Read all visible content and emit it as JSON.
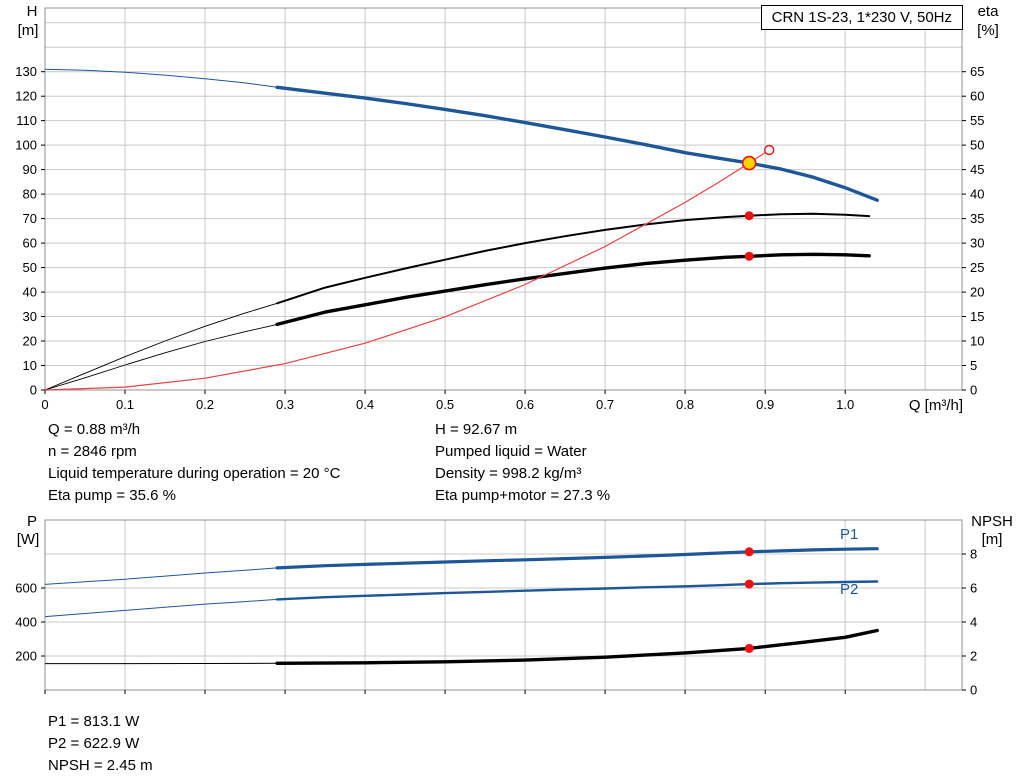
{
  "colors": {
    "curve_blue": "#1e5799",
    "curve_black": "#000000",
    "curve_red": "#e64040",
    "dot_red": "#ee1111",
    "duty_fill": "#ffd200",
    "grid": "#c9c9c9",
    "frame": "#909090"
  },
  "operating_data": {
    "left": [
      "Q = 0.88 m³/h",
      "n = 2846 rpm",
      "Liquid temperature during operation = 20 °C",
      "Eta pump = 35.6 %"
    ],
    "right": [
      "H = 92.67 m",
      "Pumped liquid = Water",
      "Density = 998.2 kg/m³",
      "Eta pump+motor = 27.3 %"
    ]
  },
  "power_data": [
    "P1 = 813.1 W",
    "P2 = 622.9 W",
    "NPSH = 2.45 m"
  ],
  "chart_data": [
    {
      "id": "qh-eta-chart",
      "type": "line",
      "title": "CRN 1S-23, 1*230 V, 50Hz",
      "x": {
        "label": "Q [m³/h]",
        "min": 0,
        "max": 1.146,
        "ticks": [
          {
            "v": 0,
            "t": "0"
          },
          {
            "v": 0.1,
            "t": "0.1"
          },
          {
            "v": 0.2,
            "t": "0.2"
          },
          {
            "v": 0.3,
            "t": "0.3"
          },
          {
            "v": 0.4,
            "t": "0.4"
          },
          {
            "v": 0.5,
            "t": "0.5"
          },
          {
            "v": 0.6,
            "t": "0.6"
          },
          {
            "v": 0.7,
            "t": "0.7"
          },
          {
            "v": 0.8,
            "t": "0.8"
          },
          {
            "v": 0.9,
            "t": "0.9"
          },
          {
            "v": 1.0,
            "t": "1.0"
          }
        ],
        "grid": [
          0.1,
          0.2,
          0.3,
          0.4,
          0.5,
          0.6,
          0.7,
          0.8,
          0.9,
          1.0,
          1.1
        ]
      },
      "y_left": {
        "name": "H",
        "unit": "[m]",
        "min": 0,
        "max": 156,
        "ticks": [
          0,
          10,
          20,
          30,
          40,
          50,
          60,
          70,
          80,
          90,
          100,
          110,
          120,
          130
        ],
        "grid": [
          10,
          20,
          30,
          40,
          50,
          60,
          70,
          80,
          90,
          100,
          110,
          120,
          130,
          140,
          150
        ]
      },
      "y_right": {
        "name": "eta",
        "unit": "[%]",
        "min": 0,
        "max": 78,
        "ticks": [
          0,
          5,
          10,
          15,
          20,
          25,
          30,
          35,
          40,
          45,
          50,
          55,
          60,
          65
        ],
        "grid": []
      },
      "series": [
        {
          "name": "H (head)",
          "slug": "head",
          "axis": "y_left",
          "color": "#1e5799",
          "thin": 1,
          "thick": 3.4,
          "split": 0.29,
          "points": [
            [
              0,
              131
            ],
            [
              0.05,
              130.6
            ],
            [
              0.1,
              129.8
            ],
            [
              0.15,
              128.6
            ],
            [
              0.2,
              127.1
            ],
            [
              0.25,
              125.4
            ],
            [
              0.29,
              123.6
            ],
            [
              0.35,
              121.2
            ],
            [
              0.4,
              119.2
            ],
            [
              0.45,
              117
            ],
            [
              0.5,
              114.6
            ],
            [
              0.55,
              112
            ],
            [
              0.6,
              109.2
            ],
            [
              0.65,
              106.3
            ],
            [
              0.7,
              103.3
            ],
            [
              0.75,
              100.2
            ],
            [
              0.8,
              96.9
            ],
            [
              0.84,
              94.8
            ],
            [
              0.88,
              92.67
            ],
            [
              0.92,
              90.2
            ],
            [
              0.96,
              86.9
            ],
            [
              1,
              82.6
            ],
            [
              1.04,
              77.5
            ]
          ]
        },
        {
          "name": "Eta pump",
          "slug": "eta-pump",
          "axis": "y_right",
          "color": "#000000",
          "thin": 0.9,
          "thick": 2,
          "split": 0.29,
          "points": [
            [
              0,
              0
            ],
            [
              0.05,
              3.4
            ],
            [
              0.1,
              6.8
            ],
            [
              0.15,
              10
            ],
            [
              0.2,
              13
            ],
            [
              0.25,
              15.7
            ],
            [
              0.29,
              17.7
            ],
            [
              0.35,
              20.9
            ],
            [
              0.4,
              22.9
            ],
            [
              0.45,
              24.8
            ],
            [
              0.5,
              26.6
            ],
            [
              0.55,
              28.4
            ],
            [
              0.6,
              30
            ],
            [
              0.65,
              31.4
            ],
            [
              0.7,
              32.7
            ],
            [
              0.75,
              33.8
            ],
            [
              0.8,
              34.7
            ],
            [
              0.85,
              35.3
            ],
            [
              0.88,
              35.6
            ],
            [
              0.92,
              35.9
            ],
            [
              0.96,
              36
            ],
            [
              1,
              35.8
            ],
            [
              1.03,
              35.5
            ]
          ]
        },
        {
          "name": "Eta pump+motor",
          "slug": "eta-pump-motor",
          "axis": "y_right",
          "color": "#000000",
          "thin": 0.9,
          "thick": 3.4,
          "split": 0.29,
          "points": [
            [
              0,
              0
            ],
            [
              0.05,
              2.5
            ],
            [
              0.1,
              5.1
            ],
            [
              0.15,
              7.6
            ],
            [
              0.2,
              9.9
            ],
            [
              0.25,
              11.9
            ],
            [
              0.29,
              13.4
            ],
            [
              0.35,
              15.9
            ],
            [
              0.4,
              17.4
            ],
            [
              0.45,
              18.9
            ],
            [
              0.5,
              20.2
            ],
            [
              0.55,
              21.5
            ],
            [
              0.6,
              22.7
            ],
            [
              0.65,
              23.8
            ],
            [
              0.7,
              24.9
            ],
            [
              0.75,
              25.8
            ],
            [
              0.8,
              26.5
            ],
            [
              0.85,
              27.1
            ],
            [
              0.88,
              27.3
            ],
            [
              0.92,
              27.6
            ],
            [
              0.96,
              27.7
            ],
            [
              1,
              27.6
            ],
            [
              1.03,
              27.4
            ]
          ]
        },
        {
          "name": "System curve",
          "slug": "system",
          "axis": "y_left",
          "color": "#e64040",
          "thin": 1.2,
          "thick": 1.2,
          "split": null,
          "points": [
            [
              0,
              0
            ],
            [
              0.1,
              1.2
            ],
            [
              0.2,
              4.8
            ],
            [
              0.3,
              10.8
            ],
            [
              0.4,
              19.1
            ],
            [
              0.5,
              29.9
            ],
            [
              0.6,
              43.1
            ],
            [
              0.7,
              58.6
            ],
            [
              0.8,
              76.6
            ],
            [
              0.84,
              84.4
            ],
            [
              0.88,
              92.67
            ],
            [
              0.905,
              98
            ]
          ]
        }
      ],
      "markers": [
        {
          "type": "dot",
          "q": 0.88,
          "v": 35.6,
          "axis": "y_right"
        },
        {
          "type": "dot",
          "q": 0.88,
          "v": 27.3,
          "axis": "y_right"
        },
        {
          "type": "open",
          "q": 0.905,
          "v": 98,
          "axis": "y_left"
        },
        {
          "type": "duty",
          "q": 0.88,
          "v": 92.67,
          "axis": "y_left"
        }
      ],
      "labels": []
    },
    {
      "id": "power-npsh-chart",
      "type": "line",
      "title": "",
      "x": {
        "label": "",
        "min": 0,
        "max": 1.146,
        "ticks": [
          {
            "v": 0,
            "t": ""
          },
          {
            "v": 0.1,
            "t": ""
          },
          {
            "v": 0.2,
            "t": ""
          },
          {
            "v": 0.3,
            "t": ""
          },
          {
            "v": 0.4,
            "t": ""
          },
          {
            "v": 0.5,
            "t": ""
          },
          {
            "v": 0.6,
            "t": ""
          },
          {
            "v": 0.7,
            "t": ""
          },
          {
            "v": 0.8,
            "t": ""
          },
          {
            "v": 0.9,
            "t": ""
          },
          {
            "v": 1.0,
            "t": ""
          }
        ],
        "grid": [
          0.1,
          0.2,
          0.3,
          0.4,
          0.5,
          0.6,
          0.7,
          0.8,
          0.9,
          1.0,
          1.1
        ]
      },
      "y_left": {
        "name": "P",
        "unit": "[W]",
        "min": 0,
        "max": 1000,
        "ticks": [
          200,
          400,
          600
        ],
        "grid": [
          200,
          400,
          600,
          800
        ]
      },
      "y_right": {
        "name": "NPSH",
        "unit": "[m]",
        "min": 0,
        "max": 10,
        "ticks": [
          0,
          2,
          4,
          6,
          8
        ],
        "grid": []
      },
      "series": [
        {
          "name": "P1",
          "slug": "p1",
          "axis": "y_left",
          "color": "#1e5799",
          "thin": 1,
          "thick": 3.2,
          "split": 0.29,
          "points": [
            [
              0,
              621
            ],
            [
              0.05,
              637
            ],
            [
              0.1,
              652
            ],
            [
              0.15,
              670
            ],
            [
              0.2,
              688
            ],
            [
              0.25,
              704
            ],
            [
              0.29,
              718
            ],
            [
              0.35,
              731
            ],
            [
              0.4,
              739
            ],
            [
              0.45,
              746
            ],
            [
              0.5,
              753
            ],
            [
              0.55,
              760
            ],
            [
              0.6,
              766
            ],
            [
              0.65,
              773
            ],
            [
              0.7,
              780
            ],
            [
              0.75,
              788
            ],
            [
              0.8,
              797
            ],
            [
              0.84,
              805
            ],
            [
              0.88,
              813
            ],
            [
              0.92,
              818
            ],
            [
              0.96,
              824
            ],
            [
              1,
              828
            ],
            [
              1.04,
              831
            ]
          ]
        },
        {
          "name": "P2",
          "slug": "p2",
          "axis": "y_left",
          "color": "#1e5799",
          "thin": 1,
          "thick": 2.4,
          "split": 0.29,
          "points": [
            [
              0,
              432
            ],
            [
              0.05,
              450
            ],
            [
              0.1,
              468
            ],
            [
              0.15,
              487
            ],
            [
              0.2,
              505
            ],
            [
              0.25,
              520
            ],
            [
              0.29,
              533
            ],
            [
              0.35,
              546
            ],
            [
              0.4,
              554
            ],
            [
              0.45,
              562
            ],
            [
              0.5,
              570
            ],
            [
              0.55,
              577
            ],
            [
              0.6,
              584
            ],
            [
              0.65,
              591
            ],
            [
              0.7,
              597
            ],
            [
              0.75,
              604
            ],
            [
              0.8,
              610
            ],
            [
              0.84,
              616
            ],
            [
              0.88,
              623
            ],
            [
              0.92,
              628
            ],
            [
              0.96,
              632
            ],
            [
              1,
              635
            ],
            [
              1.04,
              638
            ]
          ]
        },
        {
          "name": "NPSH",
          "slug": "npsh",
          "axis": "y_right",
          "color": "#000000",
          "thin": 1,
          "thick": 3.4,
          "split": 0.29,
          "points": [
            [
              0,
              1.55
            ],
            [
              0.1,
              1.55
            ],
            [
              0.2,
              1.56
            ],
            [
              0.29,
              1.57
            ],
            [
              0.4,
              1.6
            ],
            [
              0.5,
              1.66
            ],
            [
              0.6,
              1.76
            ],
            [
              0.7,
              1.93
            ],
            [
              0.8,
              2.18
            ],
            [
              0.88,
              2.45
            ],
            [
              0.95,
              2.82
            ],
            [
              1,
              3.1
            ],
            [
              1.04,
              3.5
            ]
          ]
        }
      ],
      "markers": [
        {
          "type": "dot",
          "q": 0.88,
          "v": 813.1,
          "axis": "y_left"
        },
        {
          "type": "dot",
          "q": 0.88,
          "v": 622.9,
          "axis": "y_left"
        },
        {
          "type": "dot",
          "q": 0.88,
          "v": 2.45,
          "axis": "y_right"
        }
      ],
      "labels": [
        {
          "text": "P1",
          "q": 1.005,
          "v": 888,
          "axis": "y_left"
        },
        {
          "text": "P2",
          "q": 1.005,
          "v": 565,
          "axis": "y_left"
        }
      ]
    }
  ]
}
